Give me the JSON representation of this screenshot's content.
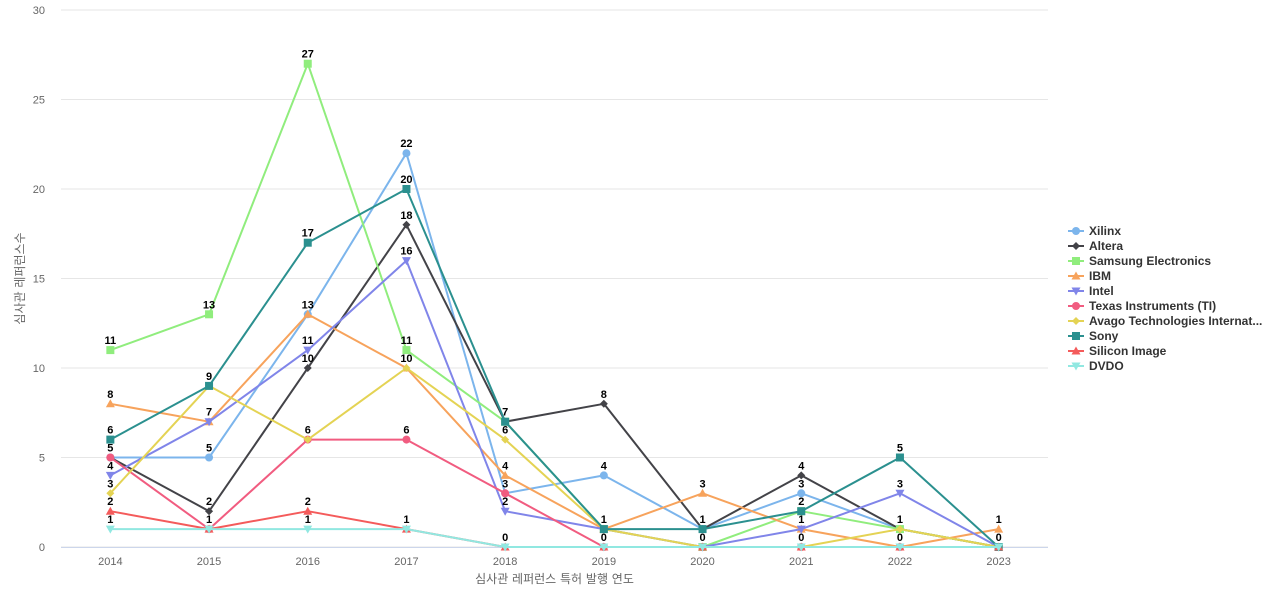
{
  "chart_data": {
    "type": "line",
    "xlabel": "심사관 레퍼런스 특허 발행 연도",
    "ylabel": "심사관 레퍼런스수",
    "x": [
      "2014",
      "2015",
      "2016",
      "2017",
      "2018",
      "2019",
      "2020",
      "2021",
      "2022",
      "2023"
    ],
    "ylim": [
      0,
      30
    ],
    "yticks": [
      0,
      5,
      10,
      15,
      20,
      25,
      30
    ],
    "grid": true,
    "legend_position": "right",
    "series": [
      {
        "name": "Xilinx",
        "color": "#7cb5ec",
        "marker": "circle",
        "values": [
          5,
          5,
          13,
          22,
          3,
          4,
          1,
          3,
          1,
          0
        ]
      },
      {
        "name": "Altera",
        "color": "#434348",
        "marker": "diamond",
        "values": [
          5,
          2,
          10,
          18,
          7,
          8,
          1,
          4,
          1,
          0
        ]
      },
      {
        "name": "Samsung Electronics",
        "color": "#90ed7d",
        "marker": "square",
        "values": [
          11,
          13,
          27,
          11,
          7,
          1,
          0,
          2,
          1,
          0
        ]
      },
      {
        "name": "IBM",
        "color": "#f7a35c",
        "marker": "triangle",
        "values": [
          8,
          7,
          13,
          10,
          4,
          1,
          3,
          1,
          0,
          1
        ]
      },
      {
        "name": "Intel",
        "color": "#8085e9",
        "marker": "triangle-down",
        "values": [
          4,
          7,
          11,
          16,
          2,
          1,
          0,
          1,
          3,
          0
        ]
      },
      {
        "name": "Texas Instruments (TI)",
        "color": "#f15c80",
        "marker": "circle",
        "values": [
          5,
          1,
          6,
          6,
          3,
          0,
          0,
          0,
          0,
          0
        ]
      },
      {
        "name": "Avago Technologies Internat...",
        "color": "#e4d354",
        "marker": "diamond",
        "values": [
          3,
          9,
          6,
          10,
          6,
          1,
          0,
          0,
          1,
          0
        ]
      },
      {
        "name": "Sony",
        "color": "#2b908f",
        "marker": "square",
        "values": [
          6,
          9,
          17,
          20,
          7,
          1,
          1,
          2,
          5,
          0
        ]
      },
      {
        "name": "Silicon Image",
        "color": "#f45b5b",
        "marker": "triangle",
        "values": [
          2,
          1,
          2,
          1,
          0,
          0,
          0,
          0,
          0,
          0
        ]
      },
      {
        "name": "DVDO",
        "color": "#91e8e1",
        "marker": "triangle-down",
        "values": [
          1,
          1,
          1,
          1,
          0,
          0,
          0,
          0,
          0,
          0
        ]
      }
    ],
    "data_labels": [
      {
        "x": "2014",
        "value": 11
      },
      {
        "x": "2014",
        "value": 8
      },
      {
        "x": "2014",
        "value": 6
      },
      {
        "x": "2014",
        "value": 5
      },
      {
        "x": "2014",
        "value": 4
      },
      {
        "x": "2014",
        "value": 3
      },
      {
        "x": "2014",
        "value": 2
      },
      {
        "x": "2014",
        "value": 1
      },
      {
        "x": "2015",
        "value": 13
      },
      {
        "x": "2015",
        "value": 9
      },
      {
        "x": "2015",
        "value": 7
      },
      {
        "x": "2015",
        "value": 5
      },
      {
        "x": "2015",
        "value": 2
      },
      {
        "x": "2015",
        "value": 1
      },
      {
        "x": "2016",
        "value": 27
      },
      {
        "x": "2016",
        "value": 17
      },
      {
        "x": "2016",
        "value": 13
      },
      {
        "x": "2016",
        "value": 11
      },
      {
        "x": "2016",
        "value": 10
      },
      {
        "x": "2016",
        "value": 6
      },
      {
        "x": "2016",
        "value": 2
      },
      {
        "x": "2016",
        "value": 1
      },
      {
        "x": "2017",
        "value": 22
      },
      {
        "x": "2017",
        "value": 20
      },
      {
        "x": "2017",
        "value": 18
      },
      {
        "x": "2017",
        "value": 16
      },
      {
        "x": "2017",
        "value": 11
      },
      {
        "x": "2017",
        "value": 10
      },
      {
        "x": "2017",
        "value": 6
      },
      {
        "x": "2017",
        "value": 1
      },
      {
        "x": "2018",
        "value": 7
      },
      {
        "x": "2018",
        "value": 6
      },
      {
        "x": "2018",
        "value": 4
      },
      {
        "x": "2018",
        "value": 3
      },
      {
        "x": "2018",
        "value": 2
      },
      {
        "x": "2018",
        "value": 0
      },
      {
        "x": "2019",
        "value": 8
      },
      {
        "x": "2019",
        "value": 4
      },
      {
        "x": "2019",
        "value": 1
      },
      {
        "x": "2019",
        "value": 0
      },
      {
        "x": "2020",
        "value": 3
      },
      {
        "x": "2020",
        "value": 1
      },
      {
        "x": "2020",
        "value": 0
      },
      {
        "x": "2021",
        "value": 4
      },
      {
        "x": "2021",
        "value": 3
      },
      {
        "x": "2021",
        "value": 2
      },
      {
        "x": "2021",
        "value": 1
      },
      {
        "x": "2021",
        "value": 0
      },
      {
        "x": "2022",
        "value": 5
      },
      {
        "x": "2022",
        "value": 3
      },
      {
        "x": "2022",
        "value": 1
      },
      {
        "x": "2022",
        "value": 0
      },
      {
        "x": "2023",
        "value": 1
      },
      {
        "x": "2023",
        "value": 0
      }
    ]
  }
}
